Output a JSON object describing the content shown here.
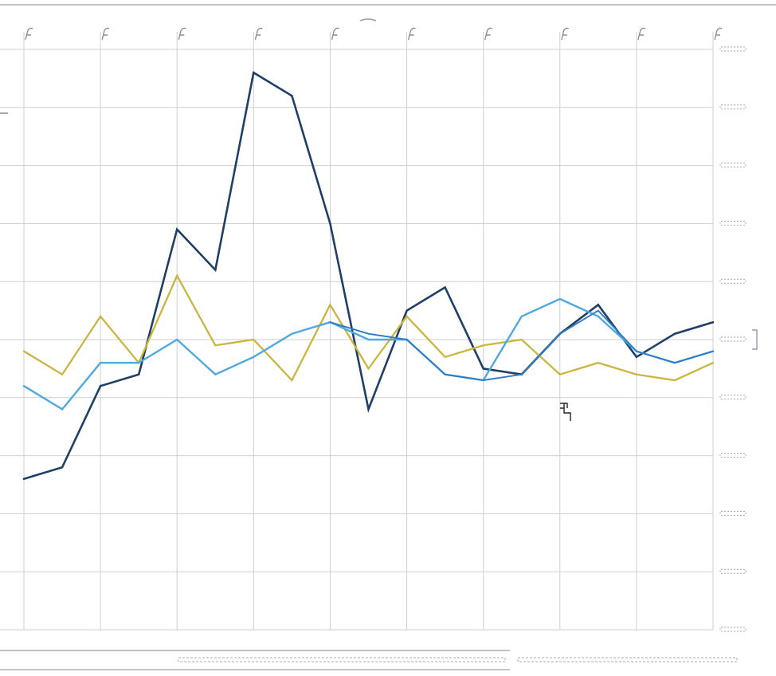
{
  "chart_data": {
    "type": "line",
    "x": [
      0,
      0.5,
      1,
      1.5,
      2,
      2.5,
      3,
      3.5,
      4,
      4.5,
      5,
      5.5,
      6,
      6.5,
      7,
      7.5,
      8,
      8.5,
      9
    ],
    "ylim": [
      0,
      10
    ],
    "xlim": [
      0,
      9
    ],
    "y_ticks": [
      0,
      1,
      2,
      3,
      4,
      5,
      6,
      7,
      8,
      9,
      10
    ],
    "grid": true,
    "legend": "none",
    "series": [
      {
        "color": "#1e3f66",
        "stroke_width": 2.6,
        "values": [
          2.6,
          2.8,
          4.2,
          4.4,
          6.9,
          6.2,
          9.6,
          9.2,
          7.0,
          3.8,
          5.5,
          5.9,
          4.5,
          4.4,
          5.1,
          5.6,
          4.7,
          5.1,
          5.3
        ]
      },
      {
        "color": "#c9b540",
        "stroke_width": 2.3,
        "values": [
          4.8,
          4.4,
          5.4,
          4.6,
          6.1,
          4.9,
          5.0,
          4.3,
          5.6,
          4.5,
          5.4,
          4.7,
          4.9,
          5.0,
          4.4,
          4.6,
          4.4,
          4.3,
          4.6
        ]
      },
      {
        "color": "#4fa9de",
        "stroke_width": 2.4,
        "values": [
          4.2,
          3.8,
          4.6,
          4.6,
          5.0,
          4.4,
          4.7,
          5.1,
          5.3,
          5.0,
          5.0,
          4.4,
          4.3,
          5.4,
          5.7,
          5.4,
          4.8,
          4.6,
          4.8
        ]
      },
      {
        "color": "#2f7bc4",
        "stroke_width": 1.9,
        "values": [
          null,
          null,
          null,
          null,
          null,
          null,
          null,
          null,
          5.3,
          5.1,
          5.0,
          4.4,
          4.3,
          4.4,
          5.1,
          5.5,
          4.8,
          4.6,
          4.8
        ]
      }
    ]
  }
}
